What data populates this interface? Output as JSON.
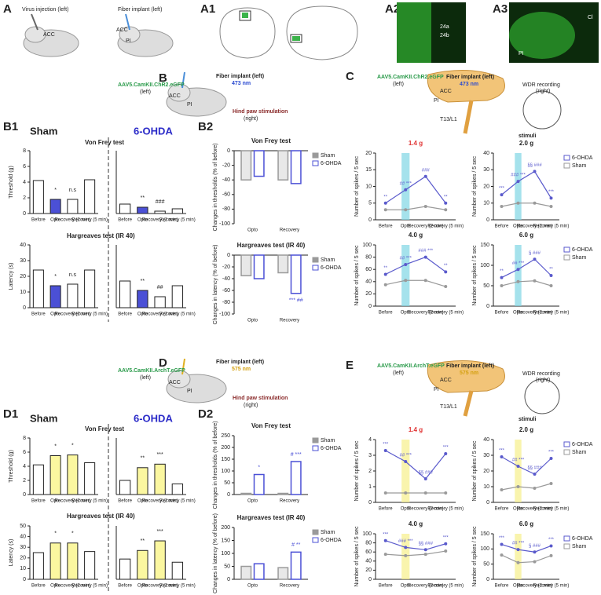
{
  "panel_A": {
    "letter": "A",
    "injection": "Virus injection (left)",
    "acc1": "ACC",
    "implant": "Fiber implant (left)",
    "acc2": "ACC",
    "pi": "PI"
  },
  "panel_A1": {
    "letter": "A1"
  },
  "panel_A2": {
    "letter": "A2",
    "l1": "24a",
    "l2": "24b"
  },
  "panel_A3": {
    "letter": "A3",
    "l1": "Cl",
    "l2": "PI"
  },
  "panel_B": {
    "letter": "B",
    "virus": "AAV5.CamKII.ChR2.eGFP",
    "side": "(left)",
    "implant": "Fiber implant (left)",
    "nm": "473 nm",
    "acc": "ACC",
    "pi": "PI",
    "stim": "Hind paw stimulation",
    "stim_side": "(right)"
  },
  "panel_C": {
    "letter": "C",
    "virus": "AAV5.CamKII.ChR2.eGFP",
    "side": "(left)",
    "implant": "Fiber implant (left)",
    "nm": "473 nm",
    "acc": "ACC",
    "pi": "PI",
    "rec": "WDR recording",
    "rec_side": "(right)",
    "seg": "T13/L1",
    "stim": "stimuli"
  },
  "panel_B1": {
    "letter": "B1",
    "sham": "Sham",
    "ohda": "6-OHDA",
    "vf": "Von Frey test",
    "hg": "Hargreaves test (IR 40)"
  },
  "panel_B2": {
    "letter": "B2"
  },
  "panel_D": {
    "letter": "D",
    "virus": "AAV5.CamKII.ArchT.eGFP",
    "side": "(left)",
    "implant": "Fiber implant (left)",
    "nm": "575 nm",
    "acc": "ACC",
    "pi": "PI",
    "stim": "Hind paw stimulation",
    "stim_side": "(right)"
  },
  "panel_E": {
    "letter": "E",
    "virus": "AAV5.CamKII.ArchT.eGFP",
    "side": "(left)",
    "implant": "Fiber implant (left)",
    "nm": "575 nm",
    "acc": "ACC",
    "pi": "PI",
    "rec": "WDR recording",
    "rec_side": "(right)",
    "seg": "T13/L1",
    "stim": "stimuli"
  },
  "panel_D1": {
    "letter": "D1",
    "sham": "Sham",
    "ohda": "6-OHDA",
    "vf": "Von Frey test",
    "hg": "Hargreaves test (IR 40)"
  },
  "panel_D2": {
    "letter": "D2"
  },
  "chart_data": [
    {
      "type": "bar",
      "ylabel": "Threshold (g)",
      "categories": [
        "Before",
        "Opto",
        "Recovery (2 min)",
        "Recovery (5 min)"
      ],
      "values": [
        4.2,
        1.8,
        1.8,
        4.3
      ],
      "colors": [
        "#ffffff",
        "#4b50d6",
        "#ffffff",
        "#ffffff"
      ],
      "annotations": [
        null,
        "*",
        "n.s",
        null
      ],
      "ylim": [
        0,
        8
      ],
      "yticks": [
        0,
        2,
        4,
        6,
        8
      ]
    },
    {
      "type": "bar",
      "categories": [
        "Before",
        "Opto",
        "Recovery (2 min)",
        "Recovery (5 min)"
      ],
      "values": [
        1.2,
        0.8,
        0.3,
        0.6
      ],
      "colors": [
        "#ffffff",
        "#4b50d6",
        "#ffffff",
        "#ffffff"
      ],
      "annotations": [
        null,
        "**",
        "###",
        null
      ],
      "ylim": [
        0,
        8
      ]
    },
    {
      "type": "bar",
      "ylabel": "Latency (s)",
      "categories": [
        "Before",
        "Opto",
        "Recovery (2 min)",
        "Recovery (5 min)"
      ],
      "values": [
        24,
        14,
        15,
        24
      ],
      "colors": [
        "#ffffff",
        "#4b50d6",
        "#ffffff",
        "#ffffff"
      ],
      "annotations": [
        null,
        "*",
        "n.s",
        null
      ],
      "ylim": [
        0,
        40
      ],
      "yticks": [
        0,
        10,
        20,
        30,
        40
      ]
    },
    {
      "type": "bar",
      "categories": [
        "Before",
        "Opto",
        "Recovery (2 min)",
        "Recovery (5 min)"
      ],
      "values": [
        17,
        11,
        7,
        14
      ],
      "colors": [
        "#ffffff",
        "#4b50d6",
        "#ffffff",
        "#ffffff"
      ],
      "annotations": [
        null,
        "**",
        "##",
        null
      ],
      "ylim": [
        0,
        40
      ]
    },
    {
      "type": "grouped",
      "title": "Von Frey test",
      "ylabel": "Changes in thresholds (% of before)",
      "categories": [
        "Opto",
        "Recovery"
      ],
      "series": [
        {
          "name": "Sham",
          "color": "#9a9a9a",
          "values": [
            -40,
            -40
          ]
        },
        {
          "name": "6-OHDA",
          "color": "#4b50d6",
          "values": [
            -35,
            -45
          ]
        }
      ],
      "ylim": [
        -100,
        0
      ],
      "yticks": [
        0,
        -20,
        -40,
        -60,
        -80,
        -100
      ]
    },
    {
      "type": "grouped",
      "title": "Hargreaves test (IR 40)",
      "ylabel": "Changes in latency (% of before)",
      "categories": [
        "Opto",
        "Recovery"
      ],
      "series": [
        {
          "name": "Sham",
          "color": "#9a9a9a",
          "values": [
            -35,
            -30
          ]
        },
        {
          "name": "6-OHDA",
          "color": "#4b50d6",
          "values": [
            -40,
            -65
          ],
          "labels": [
            null,
            "*** ##"
          ]
        }
      ],
      "ylim": [
        -100,
        0
      ],
      "yticks": [
        0,
        -20,
        -40,
        -60,
        -80,
        -100
      ]
    },
    {
      "type": "line",
      "title": "1.4 g",
      "title_color": "#e03030",
      "ylabel": "Number of spikes / 5 sec",
      "categories": [
        "Before",
        "Opto",
        "Recovery (2 min)",
        "Recovery (5 min)"
      ],
      "highlight": "Opto",
      "highlight_color": "#7fd6e4",
      "legend": false,
      "series": [
        {
          "color": "#5a5acc",
          "values": [
            5,
            9,
            13,
            5
          ],
          "labels": [
            "**",
            "## ***",
            "###",
            "**"
          ]
        },
        {
          "color": "#9a9a9a",
          "values": [
            3,
            3,
            4,
            3
          ]
        }
      ],
      "ylim": [
        0,
        20
      ],
      "yticks": [
        0,
        5,
        10,
        15,
        20
      ]
    },
    {
      "type": "line",
      "title": "2.0 g",
      "ylabel": "Number of spikes / 5 sec",
      "categories": [
        "Before",
        "Opto",
        "Recovery (2 min)",
        "Recovery (5 min)"
      ],
      "highlight": "Opto",
      "highlight_color": "#7fd6e4",
      "legend": true,
      "series": [
        {
          "name": "6-OHDA",
          "color": "#5a5acc",
          "values": [
            15,
            23,
            29,
            13
          ],
          "labels": [
            "***",
            "### ***",
            "§§ ###",
            "***"
          ]
        },
        {
          "name": "Sham",
          "color": "#9a9a9a",
          "values": [
            8,
            10,
            10,
            8
          ]
        }
      ],
      "ylim": [
        0,
        40
      ],
      "yticks": [
        0,
        10,
        20,
        30,
        40
      ]
    },
    {
      "type": "line",
      "title": "4.0 g",
      "ylabel": "Number of spikes / 5 sec",
      "categories": [
        "Before",
        "Opto",
        "Recovery (2 min)",
        "Recovery (5 min)"
      ],
      "highlight": "Opto",
      "highlight_color": "#7fd6e4",
      "legend": false,
      "series": [
        {
          "color": "#5a5acc",
          "values": [
            52,
            68,
            80,
            56
          ],
          "labels": [
            "**",
            "## ***",
            "### ***",
            "**"
          ]
        },
        {
          "color": "#9a9a9a",
          "values": [
            35,
            42,
            42,
            32
          ]
        }
      ],
      "ylim": [
        0,
        100
      ],
      "yticks": [
        0,
        20,
        40,
        60,
        80,
        100
      ]
    },
    {
      "type": "line",
      "title": "6.0 g",
      "ylabel": "Number of spikes / 5 sec",
      "categories": [
        "Before",
        "Opto",
        "Recovery (2 min)",
        "Recovery (5 min)"
      ],
      "highlight": "Opto",
      "highlight_color": "#7fd6e4",
      "legend": true,
      "series": [
        {
          "name": "6-OHDA",
          "color": "#5a5acc",
          "values": [
            70,
            90,
            115,
            75
          ],
          "labels": [
            "**",
            "## ***",
            "§ ###",
            "**"
          ]
        },
        {
          "name": "Sham",
          "color": "#9a9a9a",
          "values": [
            50,
            60,
            62,
            50
          ]
        }
      ],
      "ylim": [
        0,
        150
      ],
      "yticks": [
        0,
        50,
        100,
        150
      ]
    },
    {
      "type": "bar",
      "ylabel": "Threshold (g)",
      "categories": [
        "Before",
        "Opto",
        "Recovery (2 min)",
        "Recovery (5 min)"
      ],
      "values": [
        4.2,
        5.5,
        5.6,
        4.5
      ],
      "colors": [
        "#ffffff",
        "#fbf7a0",
        "#fbf7a0",
        "#ffffff"
      ],
      "annotations": [
        null,
        "*",
        "*",
        null
      ],
      "ylim": [
        0,
        8
      ],
      "yticks": [
        0,
        2,
        4,
        6,
        8
      ]
    },
    {
      "type": "bar",
      "categories": [
        "Before",
        "Opto",
        "Recovery (2 min)",
        "Recovery (5 min)"
      ],
      "values": [
        2.0,
        3.8,
        4.3,
        1.5
      ],
      "colors": [
        "#ffffff",
        "#fbf7a0",
        "#fbf7a0",
        "#ffffff"
      ],
      "annotations": [
        null,
        "**",
        "***",
        null
      ],
      "ylim": [
        0,
        8
      ]
    },
    {
      "type": "bar",
      "ylabel": "Latency (s)",
      "categories": [
        "Before",
        "Opto",
        "Recovery (2 min)",
        "Recovery (5 min)"
      ],
      "values": [
        25,
        34,
        34,
        26
      ],
      "colors": [
        "#ffffff",
        "#fbf7a0",
        "#fbf7a0",
        "#ffffff"
      ],
      "annotations": [
        null,
        "*",
        "*",
        null
      ],
      "ylim": [
        0,
        50
      ],
      "yticks": [
        0,
        10,
        20,
        30,
        40,
        50
      ]
    },
    {
      "type": "bar",
      "categories": [
        "Before",
        "Opto",
        "Recovery (2 min)",
        "Recovery (5 min)"
      ],
      "values": [
        19,
        27,
        36,
        16
      ],
      "colors": [
        "#ffffff",
        "#fbf7a0",
        "#fbf7a0",
        "#ffffff"
      ],
      "annotations": [
        null,
        "**",
        "***",
        null
      ],
      "ylim": [
        0,
        50
      ]
    },
    {
      "type": "grouped",
      "title": "Von Frey test",
      "ylabel": "Changes in thresholds (% of before)",
      "categories": [
        "Opto",
        "Recovery"
      ],
      "series": [
        {
          "name": "Sham",
          "color": "#9a9a9a",
          "values": [
            5,
            5
          ]
        },
        {
          "name": "6-OHDA",
          "color": "#4b50d6",
          "values": [
            85,
            140
          ],
          "labels": [
            "*",
            "# ***"
          ]
        }
      ],
      "ylim": [
        0,
        250
      ],
      "yticks": [
        0,
        50,
        100,
        150,
        200,
        250
      ]
    },
    {
      "type": "grouped",
      "title": "Hargreaves test (IR 40)",
      "ylabel": "Changes in latency (% of before)",
      "categories": [
        "Opto",
        "Recovery"
      ],
      "series": [
        {
          "name": "Sham",
          "color": "#9a9a9a",
          "values": [
            50,
            45
          ]
        },
        {
          "name": "6-OHDA",
          "color": "#4b50d6",
          "values": [
            60,
            105
          ],
          "labels": [
            null,
            "# **"
          ]
        }
      ],
      "ylim": [
        0,
        200
      ],
      "yticks": [
        0,
        50,
        100,
        150,
        200
      ]
    },
    {
      "type": "line",
      "title": "1.4 g",
      "title_color": "#e03030",
      "ylabel": "Number of spikes / 5 sec",
      "categories": [
        "Before",
        "Opto",
        "Recovery (2 min)",
        "Recovery (5 min)"
      ],
      "highlight": "Opto",
      "highlight_color": "#f6f08a",
      "legend": false,
      "series": [
        {
          "color": "#5a5acc",
          "values": [
            3.3,
            2.6,
            1.5,
            3.1
          ],
          "labels": [
            "***",
            "## ***",
            "§§ ###",
            "***"
          ]
        },
        {
          "color": "#9a9a9a",
          "values": [
            0.6,
            0.6,
            0.6,
            0.6
          ]
        }
      ],
      "ylim": [
        0,
        4
      ],
      "yticks": [
        0,
        1,
        2,
        3,
        4
      ]
    },
    {
      "type": "line",
      "title": "2.0 g",
      "ylabel": "Number of spikes / 5 sec",
      "categories": [
        "Before",
        "Opto",
        "Recovery (2 min)",
        "Recovery (5 min)"
      ],
      "highlight": "Opto",
      "highlight_color": "#f6f08a",
      "legend": true,
      "series": [
        {
          "name": "6-OHDA",
          "color": "#5a5acc",
          "values": [
            29,
            23,
            18,
            28
          ],
          "labels": [
            "***",
            "## ***",
            "§§ ###",
            "***"
          ]
        },
        {
          "name": "Sham",
          "color": "#9a9a9a",
          "values": [
            8,
            10,
            9,
            12
          ]
        }
      ],
      "ylim": [
        0,
        40
      ],
      "yticks": [
        0,
        10,
        20,
        30,
        40
      ]
    },
    {
      "type": "line",
      "title": "4.0 g",
      "ylabel": "Number of spikes / 5 sec",
      "categories": [
        "Before",
        "Opto",
        "Recovery (2 min)",
        "Recovery (5 min)"
      ],
      "highlight": "Opto",
      "highlight_color": "#f6f08a",
      "legend": false,
      "series": [
        {
          "color": "#5a5acc",
          "values": [
            85,
            70,
            65,
            78
          ],
          "labels": [
            "***",
            "### ***",
            "§§ ###",
            "***"
          ]
        },
        {
          "color": "#9a9a9a",
          "values": [
            55,
            52,
            55,
            62
          ]
        }
      ],
      "ylim": [
        0,
        100
      ],
      "yticks": [
        0,
        20,
        40,
        60,
        80,
        100
      ]
    },
    {
      "type": "line",
      "title": "6.0 g",
      "ylabel": "Number of spikes / 5 sec",
      "categories": [
        "Before",
        "Opto",
        "Recovery (2 min)",
        "Recovery (5 min)"
      ],
      "highlight": "Opto",
      "highlight_color": "#f6f08a",
      "legend": true,
      "series": [
        {
          "name": "6-OHDA",
          "color": "#5a5acc",
          "values": [
            115,
            98,
            90,
            110
          ],
          "labels": [
            "***",
            "## ***",
            "§ ###",
            "***"
          ]
        },
        {
          "name": "Sham",
          "color": "#9a9a9a",
          "values": [
            80,
            55,
            58,
            78
          ]
        }
      ],
      "ylim": [
        0,
        150
      ],
      "yticks": [
        0,
        50,
        100,
        150
      ]
    }
  ]
}
